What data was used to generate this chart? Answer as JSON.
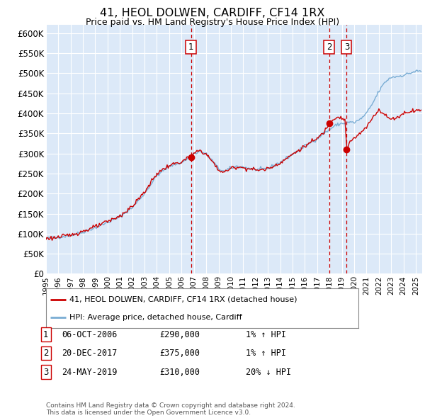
{
  "title": "41, HEOL DOLWEN, CARDIFF, CF14 1RX",
  "subtitle": "Price paid vs. HM Land Registry's House Price Index (HPI)",
  "ylim": [
    0,
    620000
  ],
  "yticks": [
    0,
    50000,
    100000,
    150000,
    200000,
    250000,
    300000,
    350000,
    400000,
    450000,
    500000,
    550000,
    600000
  ],
  "ytick_labels": [
    "£0",
    "£50K",
    "£100K",
    "£150K",
    "£200K",
    "£250K",
    "£300K",
    "£350K",
    "£400K",
    "£450K",
    "£500K",
    "£550K",
    "£600K"
  ],
  "xlim_start": 1995.0,
  "xlim_end": 2025.5,
  "plot_bg_color": "#dce9f8",
  "red_line_color": "#cc0000",
  "blue_line_color": "#7aadd4",
  "vline_color": "#cc0000",
  "sale1_year": 2006.76,
  "sale1_price": 290000,
  "sale2_year": 2017.96,
  "sale2_price": 375000,
  "sale3_year": 2019.39,
  "sale3_price": 310000,
  "sales": [
    {
      "label": "1",
      "year": 2006.76,
      "price": 290000,
      "desc": "06-OCT-2006",
      "amount": "£290,000",
      "change": "1% ↑ HPI"
    },
    {
      "label": "2",
      "year": 2017.96,
      "price": 375000,
      "desc": "20-DEC-2017",
      "amount": "£375,000",
      "change": "1% ↑ HPI"
    },
    {
      "label": "3",
      "year": 2019.39,
      "price": 310000,
      "desc": "24-MAY-2019",
      "amount": "£310,000",
      "change": "20% ↓ HPI"
    }
  ],
  "legend_property_label": "41, HEOL DOLWEN, CARDIFF, CF14 1RX (detached house)",
  "legend_hpi_label": "HPI: Average price, detached house, Cardiff",
  "footer": "Contains HM Land Registry data © Crown copyright and database right 2024.\nThis data is licensed under the Open Government Licence v3.0.",
  "xtick_years": [
    1995,
    1996,
    1997,
    1998,
    1999,
    2000,
    2001,
    2002,
    2003,
    2004,
    2005,
    2006,
    2007,
    2008,
    2009,
    2010,
    2011,
    2012,
    2013,
    2014,
    2015,
    2016,
    2017,
    2018,
    2019,
    2020,
    2021,
    2022,
    2023,
    2024,
    2025
  ]
}
